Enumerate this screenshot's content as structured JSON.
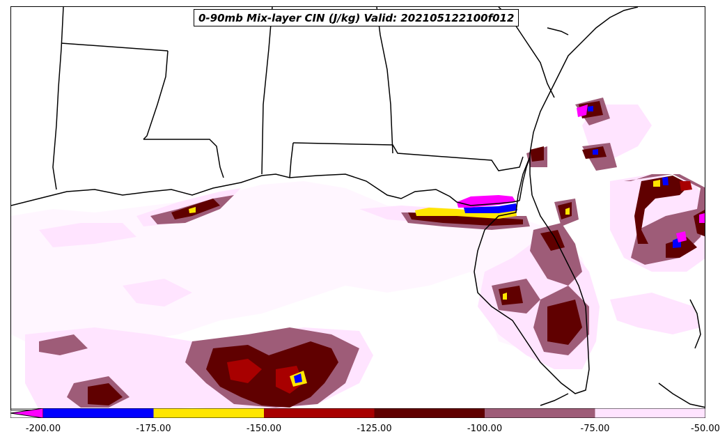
{
  "title": "0-90mb Mix-layer CIN (J/kg) Valid: 202105122100f012",
  "colorbar": {
    "extend": "min",
    "extend_color": "#ff00ff",
    "levels": [
      {
        "from": -200,
        "to": -175,
        "color": "#0000ff"
      },
      {
        "from": -175,
        "to": -150,
        "color": "#ffe600"
      },
      {
        "from": -150,
        "to": -125,
        "color": "#a80000"
      },
      {
        "from": -125,
        "to": -100,
        "color": "#600000"
      },
      {
        "from": -100,
        "to": -75,
        "color": "#9e5c78"
      },
      {
        "from": -75,
        "to": -50,
        "color": "#ffe4ff"
      }
    ],
    "tick_labels": [
      "-200.00",
      "-175.00",
      "-150.00",
      "-125.00",
      "-100.00",
      "-75.00",
      "-50.00"
    ]
  },
  "colors": {
    "lightest": "#ffe4ff",
    "mauve": "#9e5c78",
    "dark_red": "#600000",
    "red": "#a80000",
    "yellow": "#ffe600",
    "blue": "#0000ff",
    "magenta": "#ff00ff",
    "border": "#000000"
  }
}
